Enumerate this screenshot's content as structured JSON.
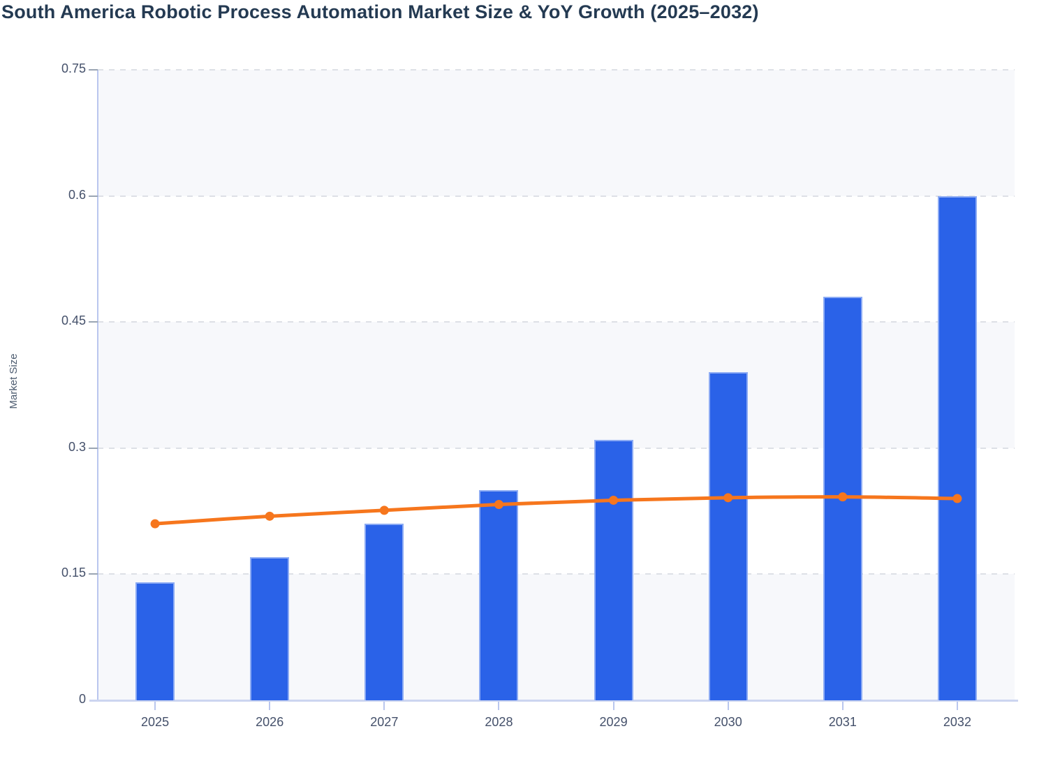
{
  "title": "South America Robotic Process Automation Market Size & YoY Growth (2025–2032)",
  "chart_data": {
    "type": "bar+line combo",
    "title": "South America Robotic Process Automation Market Size & YoY Growth (2025–2032)",
    "categories": [
      "2025",
      "2026",
      "2027",
      "2028",
      "2029",
      "2030",
      "2031",
      "2032"
    ],
    "series": [
      {
        "name": "Market Size",
        "type": "bar",
        "color": "#2a62e8",
        "values": [
          0.14,
          0.17,
          0.21,
          0.25,
          0.31,
          0.39,
          0.48,
          0.6
        ]
      },
      {
        "name": "YoY Growth",
        "type": "line",
        "color": "#f6761d",
        "values": [
          0.21,
          0.219,
          0.226,
          0.233,
          0.238,
          0.241,
          0.242,
          0.24
        ]
      }
    ],
    "xlabel": "",
    "ylabel": "Market Size",
    "ylim": [
      0,
      0.75
    ],
    "yticks": [
      0,
      0.15,
      0.3,
      0.45,
      0.6,
      0.75
    ],
    "ytick_labels": [
      "0",
      "0.15",
      "0.3",
      "0.45",
      "0.6",
      "0.75"
    ],
    "grid": "horizontal dashed",
    "legend_position": "none",
    "plot_background": "alternating horizontal bands"
  },
  "colors": {
    "bar": "#2a62e8",
    "line": "#f6761d",
    "title_text": "#243a52",
    "tick_text": "#44506a",
    "axis_line": "#b9c6ee",
    "x_axis_line": "#ccd5f0",
    "y_tick_mark": "#9aa5b3",
    "gridline": "#dde0e6",
    "band": "#f7f8fb",
    "background": "#ffffff"
  }
}
